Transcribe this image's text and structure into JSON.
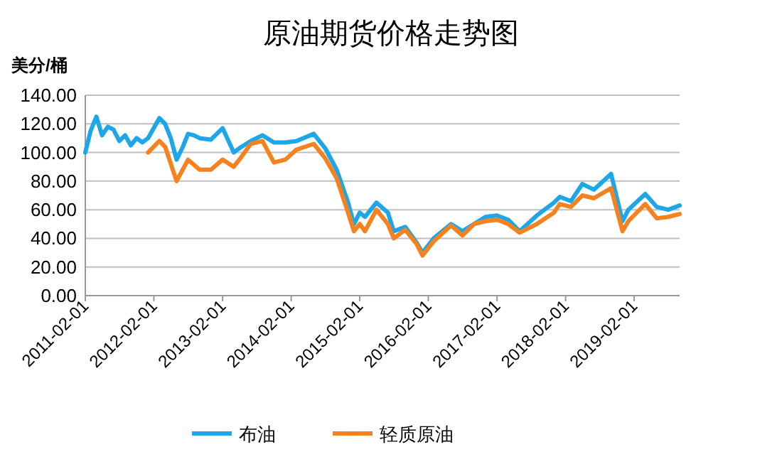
{
  "chart_data": {
    "type": "line",
    "title": "原油期货价格走势图",
    "ylabel": "美分/桶",
    "xlim": [
      "2011-02-01",
      "2019-10-01"
    ],
    "xticks": [
      {
        "value": "2011-02-01",
        "label": "2011-02-01"
      },
      {
        "value": "2012-02-01",
        "label": "2012-02-01"
      },
      {
        "value": "2013-02-01",
        "label": "2013-02-01"
      },
      {
        "value": "2014-02-01",
        "label": "2014-02-01"
      },
      {
        "value": "2015-02-01",
        "label": "2015-02-01"
      },
      {
        "value": "2016-02-01",
        "label": "2016-02-01"
      },
      {
        "value": "2017-02-01",
        "label": "2017-02-01"
      },
      {
        "value": "2018-02-01",
        "label": "2018-02-01"
      },
      {
        "value": "2019-02-01",
        "label": "2019-02-01"
      }
    ],
    "ylim": [
      0,
      140
    ],
    "yticks": [
      {
        "value": 0,
        "label": "0.00"
      },
      {
        "value": 20,
        "label": "20.00"
      },
      {
        "value": 40,
        "label": "40.00"
      },
      {
        "value": 60,
        "label": "60.00"
      },
      {
        "value": 80,
        "label": "80.00"
      },
      {
        "value": 100,
        "label": "100.00"
      },
      {
        "value": 120,
        "label": "120.00"
      },
      {
        "value": 140,
        "label": "140.00"
      }
    ],
    "grid": "y",
    "legend": "bottom",
    "line_style": "solid",
    "marker": "none",
    "series": [
      {
        "name": "布油",
        "color": "#1ea7e8",
        "x": [
          "2011-02",
          "2011-03",
          "2011-04",
          "2011-05",
          "2011-06",
          "2011-07",
          "2011-08",
          "2011-09",
          "2011-10",
          "2011-11",
          "2011-12",
          "2012-01",
          "2012-03",
          "2012-04",
          "2012-05",
          "2012-06",
          "2012-07",
          "2012-08",
          "2012-09",
          "2012-10",
          "2012-12",
          "2013-02",
          "2013-04",
          "2013-05",
          "2013-07",
          "2013-09",
          "2013-11",
          "2014-01",
          "2014-03",
          "2014-06",
          "2014-08",
          "2014-10",
          "2014-12",
          "2015-01",
          "2015-02",
          "2015-03",
          "2015-05",
          "2015-07",
          "2015-08",
          "2015-10",
          "2015-12",
          "2016-01",
          "2016-03",
          "2016-06",
          "2016-08",
          "2016-10",
          "2016-12",
          "2017-02",
          "2017-04",
          "2017-06",
          "2017-09",
          "2017-12",
          "2018-01",
          "2018-03",
          "2018-05",
          "2018-07",
          "2018-10",
          "2018-12",
          "2019-01",
          "2019-04",
          "2019-06",
          "2019-08",
          "2019-10"
        ],
        "values": [
          100,
          115,
          125,
          112,
          118,
          116,
          108,
          112,
          105,
          110,
          107,
          110,
          124,
          120,
          110,
          95,
          103,
          113,
          112,
          110,
          109,
          117,
          100,
          103,
          108,
          112,
          107,
          107,
          108,
          113,
          103,
          88,
          65,
          50,
          58,
          55,
          65,
          58,
          45,
          48,
          37,
          30,
          40,
          50,
          45,
          50,
          55,
          56,
          53,
          45,
          56,
          65,
          69,
          66,
          78,
          74,
          85,
          52,
          60,
          71,
          62,
          60,
          63
        ]
      },
      {
        "name": "轻质原油",
        "color": "#f5821f",
        "x": [
          "2012-01",
          "2012-03",
          "2012-04",
          "2012-06",
          "2012-08",
          "2012-10",
          "2012-12",
          "2013-02",
          "2013-04",
          "2013-05",
          "2013-07",
          "2013-09",
          "2013-11",
          "2014-01",
          "2014-03",
          "2014-06",
          "2014-08",
          "2014-10",
          "2014-12",
          "2015-01",
          "2015-02",
          "2015-03",
          "2015-05",
          "2015-07",
          "2015-08",
          "2015-10",
          "2015-12",
          "2016-01",
          "2016-03",
          "2016-06",
          "2016-08",
          "2016-10",
          "2016-12",
          "2017-02",
          "2017-04",
          "2017-06",
          "2017-09",
          "2017-12",
          "2018-01",
          "2018-03",
          "2018-05",
          "2018-07",
          "2018-10",
          "2018-12",
          "2019-01",
          "2019-04",
          "2019-06",
          "2019-08",
          "2019-10"
        ],
        "values": [
          100,
          108,
          104,
          80,
          95,
          88,
          88,
          95,
          90,
          95,
          106,
          108,
          93,
          95,
          102,
          106,
          96,
          82,
          58,
          45,
          50,
          45,
          60,
          50,
          40,
          46,
          36,
          28,
          38,
          49,
          42,
          50,
          52,
          53,
          50,
          44,
          50,
          58,
          64,
          62,
          70,
          68,
          75,
          45,
          52,
          64,
          54,
          55,
          57
        ]
      }
    ]
  }
}
